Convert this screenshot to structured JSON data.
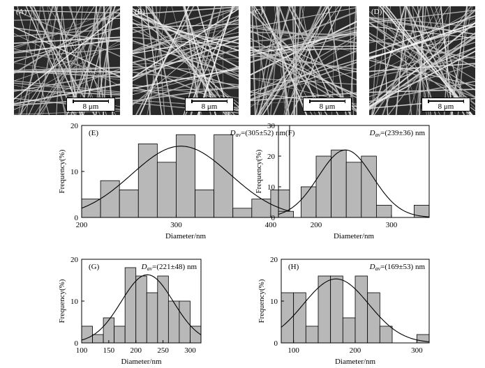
{
  "micrographs": [
    {
      "label": "(A)",
      "scale": "8  μm"
    },
    {
      "label": "(B)",
      "scale": "8  μm"
    },
    {
      "label": "(C)",
      "scale": "8  μm"
    },
    {
      "label": "(D)",
      "scale": "8  μm"
    }
  ],
  "colors": {
    "bar_fill": "#b8b8b8",
    "bar_stroke": "#000000",
    "curve": "#000000",
    "micrograph_bg": "#2a2a2a",
    "fiber": "#e8e8e8"
  },
  "chart_data": [
    {
      "type": "bar",
      "panel": "(E)",
      "annotation": {
        "symbol": "D",
        "subscript": "av",
        "text": "=(305±52) nm"
      },
      "xlabel": "Diameter/nm",
      "ylabel": "Frequency(%)",
      "xlim": [
        200,
        420
      ],
      "ylim": [
        0,
        20
      ],
      "xticks": [
        200,
        300,
        400
      ],
      "yticks": [
        0,
        10,
        20
      ],
      "bin_width": 20,
      "bin_starts": [
        200,
        220,
        240,
        260,
        280,
        300,
        320,
        340,
        360,
        380,
        400
      ],
      "values": [
        4,
        8,
        6,
        16,
        12,
        18,
        6,
        18,
        2,
        4,
        6
      ],
      "fit": {
        "type": "gaussian",
        "mean": 305,
        "sd": 52,
        "peak": 15.5
      }
    },
    {
      "type": "bar",
      "panel": "(F)",
      "annotation": {
        "symbol": "D",
        "subscript": "av",
        "text": "=(239±36) nm"
      },
      "xlabel": "Diameter/nm",
      "ylabel": "Frequency(%)",
      "xlim": [
        150,
        350
      ],
      "ylim": [
        0,
        30
      ],
      "xticks": [
        200,
        300
      ],
      "yticks": [
        0,
        10,
        20,
        30
      ],
      "bin_width": 20,
      "bin_starts": [
        150,
        170,
        180,
        200,
        220,
        240,
        260,
        280,
        300,
        320,
        330
      ],
      "values": [
        2,
        0,
        10,
        20,
        22,
        18,
        20,
        4,
        0,
        0,
        4
      ],
      "fit": {
        "type": "gaussian",
        "mean": 239,
        "sd": 36,
        "peak": 22
      }
    },
    {
      "type": "bar",
      "panel": "(G)",
      "annotation": {
        "symbol": "D",
        "subscript": "av",
        "text": "=(221±48) nm"
      },
      "xlabel": "Diameter/nm",
      "ylabel": "Frequency(%)",
      "xlim": [
        100,
        320
      ],
      "ylim": [
        0,
        20
      ],
      "xticks": [
        100,
        150,
        200,
        250,
        300
      ],
      "yticks": [
        0,
        10,
        20
      ],
      "bin_width": 20,
      "bin_starts": [
        100,
        120,
        140,
        160,
        180,
        200,
        220,
        240,
        260,
        280,
        300
      ],
      "values": [
        4,
        2,
        6,
        4,
        18,
        16,
        12,
        16,
        10,
        10,
        4
      ],
      "fit": {
        "type": "gaussian",
        "mean": 221,
        "sd": 48,
        "peak": 16.3
      }
    },
    {
      "type": "bar",
      "panel": "(H)",
      "annotation": {
        "symbol": "D",
        "subscript": "av",
        "text": "=(169±53) nm"
      },
      "xlabel": "Diameter/nm",
      "ylabel": "Frequency(%)",
      "xlim": [
        80,
        320
      ],
      "ylim": [
        0,
        20
      ],
      "xticks": [
        100,
        200,
        300
      ],
      "yticks": [
        0,
        10,
        20
      ],
      "bin_width": 20,
      "bin_starts": [
        80,
        100,
        120,
        140,
        160,
        180,
        200,
        220,
        240,
        260,
        280,
        300
      ],
      "values": [
        12,
        12,
        4,
        16,
        16,
        6,
        16,
        12,
        4,
        0,
        0,
        2
      ],
      "fit": {
        "type": "gaussian",
        "mean": 169,
        "sd": 53,
        "peak": 15.3
      }
    }
  ]
}
